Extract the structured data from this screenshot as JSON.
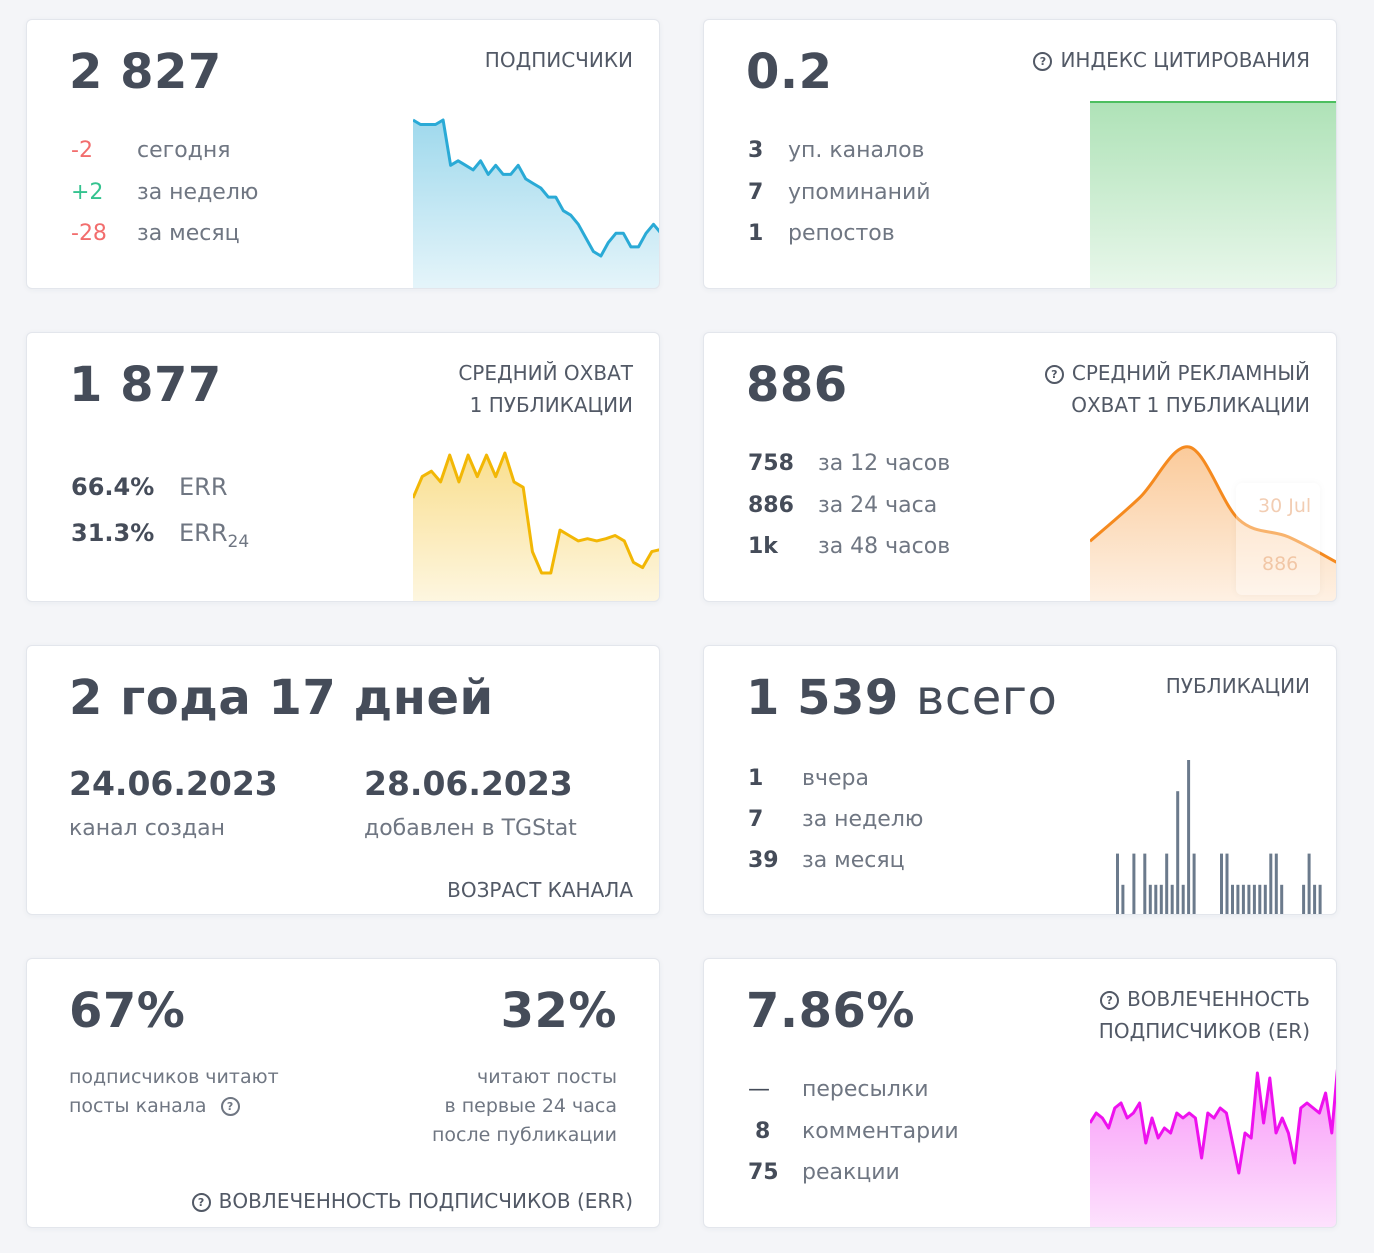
{
  "subscribers": {
    "title": "ПОДПИСЧИКИ",
    "value": "2 827",
    "rows": [
      {
        "num": "-2",
        "label": "сегодня",
        "tone": "negative"
      },
      {
        "num": "+2",
        "label": "за неделю",
        "tone": "positive"
      },
      {
        "num": "-28",
        "label": "за месяц",
        "tone": "negative"
      }
    ],
    "color": "#2aaad6"
  },
  "citation": {
    "title": "ИНДЕКС ЦИТИРОВАНИЯ",
    "value": "0.2",
    "rows": [
      {
        "num": "3",
        "label": "уп. каналов"
      },
      {
        "num": "7",
        "label": "упоминаний"
      },
      {
        "num": "1",
        "label": "репостов"
      }
    ],
    "color": "#4cbf5f"
  },
  "avg_reach": {
    "title_line1": "СРЕДНИЙ ОХВАТ",
    "title_line2": "1 ПУБЛИКАЦИИ",
    "value": "1 877",
    "rows": [
      {
        "num": "66.4%",
        "label": "ERR",
        "sub": ""
      },
      {
        "num": "31.3%",
        "label": "ERR",
        "sub": "24"
      }
    ],
    "color": "#f2b705"
  },
  "ad_reach": {
    "title_line1": "СРЕДНИЙ РЕКЛАМНЫЙ",
    "title_line2": "ОХВАТ 1 ПУБЛИКАЦИИ",
    "value": "886",
    "rows": [
      {
        "num": "758",
        "label": "за 12 часов"
      },
      {
        "num": "886",
        "label": "за 24 часа"
      },
      {
        "num": "1k",
        "label": "за 48 часов"
      }
    ],
    "tooltip_date": "30 Jul",
    "tooltip_value": "886",
    "color": "#f58a1f"
  },
  "age": {
    "value": "2 года 17 дней",
    "created_date": "24.06.2023",
    "created_label": "канал создан",
    "added_date": "28.06.2023",
    "added_label": "добавлен в TGStat",
    "title": "ВОЗРАСТ КАНАЛА"
  },
  "publications": {
    "title": "ПУБЛИКАЦИИ",
    "value": "1 539",
    "value_suffix": "всего",
    "rows": [
      {
        "num": "1",
        "label": "вчера"
      },
      {
        "num": "7",
        "label": "за неделю"
      },
      {
        "num": "39",
        "label": "за месяц"
      }
    ],
    "color": "#6b7a8c"
  },
  "err": {
    "left_value": "67%",
    "left_line1": "подписчиков читают",
    "left_line2": "посты канала",
    "right_value": "32%",
    "right_line1": "читают посты",
    "right_line2": "в первые 24 часа",
    "right_line3": "после публикации",
    "title": "ВОВЛЕЧЕННОСТЬ ПОДПИСЧИКОВ (ERR)"
  },
  "er": {
    "title_line1": "ВОВЛЕЧЕННОСТЬ",
    "title_line2": "ПОДПИСЧИКОВ (ER)",
    "value": "7.86%",
    "rows": [
      {
        "num": "—",
        "label": "пересылки"
      },
      {
        "num": "8",
        "label": "комментарии"
      },
      {
        "num": "75",
        "label": "реакции"
      }
    ],
    "color": "#ee11ee"
  },
  "chart_data": [
    {
      "type": "area",
      "title": "",
      "series": [
        {
          "values": [
            2855,
            2854,
            2854,
            2854,
            2855,
            2845,
            2846,
            2845,
            2844,
            2846,
            2843,
            2845,
            2843,
            2843,
            2845,
            2842,
            2841,
            2840,
            2838,
            2838,
            2835,
            2834,
            2832,
            2829,
            2826,
            2825,
            2828,
            2830,
            2830,
            2827,
            2827,
            2830,
            2832,
            2830
          ]
        }
      ]
    },
    {
      "type": "area",
      "title": "",
      "series": [
        {
          "values": [
            0.2,
            0.2
          ]
        }
      ]
    },
    {
      "type": "area",
      "title": "",
      "series": [
        {
          "values": [
            1890,
            1910,
            1915,
            1905,
            1930,
            1905,
            1930,
            1910,
            1930,
            1910,
            1932,
            1905,
            1900,
            1840,
            1820,
            1820,
            1860,
            1855,
            1850,
            1852,
            1850,
            1852,
            1855,
            1850,
            1830,
            1825,
            1840,
            1842
          ]
        }
      ]
    },
    {
      "type": "area",
      "title": "",
      "series": [
        {
          "values": [
            880,
            940,
            1010,
            910,
            886,
            850
          ]
        }
      ]
    },
    {
      "type": "bar",
      "title": "",
      "series": [
        {
          "values": [
            0,
            0,
            4,
            2,
            0,
            4,
            0,
            4,
            2,
            2,
            2,
            4,
            2,
            8,
            2,
            10,
            4,
            0,
            0,
            0,
            0,
            4,
            4,
            2,
            2,
            2,
            2,
            2,
            2,
            2,
            4,
            4,
            2,
            0,
            0,
            0,
            2,
            4,
            2,
            2,
            0,
            0
          ]
        }
      ]
    },
    {
      "type": "area",
      "title": "",
      "series": [
        {
          "values": [
            7.2,
            7.4,
            7.3,
            7.1,
            7.5,
            7.6,
            7.3,
            7.4,
            7.6,
            6.8,
            7.3,
            6.9,
            7.1,
            7.0,
            7.4,
            7.3,
            7.4,
            7.3,
            6.5,
            7.4,
            7.3,
            7.5,
            7.4,
            6.8,
            6.2,
            7.0,
            6.9,
            8.2,
            7.2,
            8.1,
            7.0,
            7.3,
            7.0,
            6.4,
            7.5,
            7.6,
            7.5,
            7.4,
            7.8,
            7.0,
            8.4
          ]
        }
      ]
    }
  ]
}
